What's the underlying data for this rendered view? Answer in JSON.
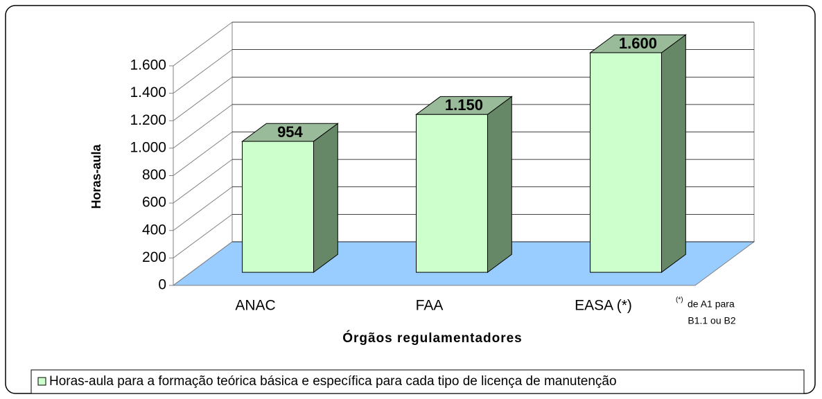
{
  "chart_data": {
    "type": "bar3d",
    "categories": [
      "ANAC",
      "FAA",
      "EASA (*)"
    ],
    "series": [
      {
        "name": "Horas-aula para a formação teórica básica e específica para cada tipo de licença de manutenção",
        "color": "#ccffcc",
        "values": [
          954,
          1150,
          1600
        ],
        "value_labels": [
          "954",
          "1.150",
          "1.600"
        ]
      }
    ],
    "ylim": [
      0,
      1600
    ],
    "yticks": [
      0,
      200,
      400,
      600,
      800,
      {
        "value": 1000,
        "label": "1.000"
      },
      {
        "value": 1200,
        "label": "1.200"
      },
      {
        "value": 1400,
        "label": "1.400"
      },
      {
        "value": 1600,
        "label": "1.600"
      }
    ],
    "ylabel": "Horas-aula",
    "xlabel": "Órgãos regulamentadores",
    "annotation": [
      "(*)",
      "de A1 para",
      "B1.1 ou B2"
    ],
    "grid": true,
    "floor_color": "#99ccff",
    "legend": "bottom"
  }
}
